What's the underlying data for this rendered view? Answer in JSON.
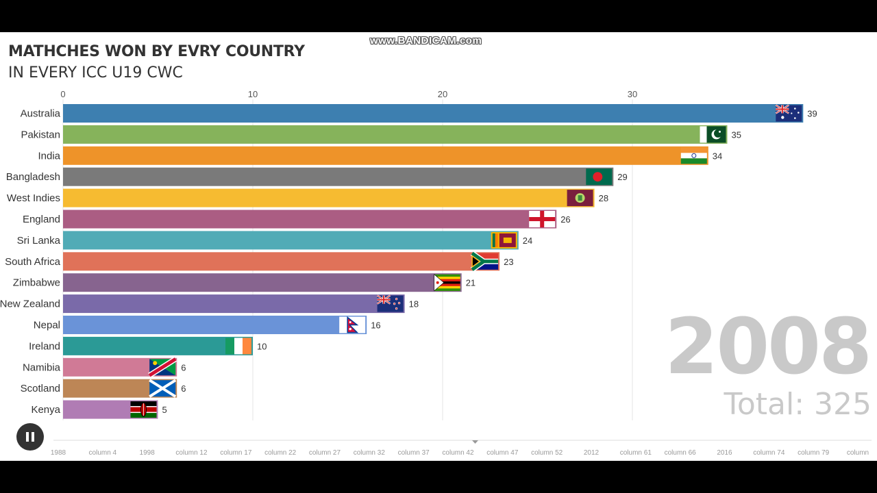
{
  "watermark": "www.BANDICAM.com",
  "chart_data": {
    "type": "bar",
    "orientation": "horizontal",
    "title": "MATHCHES WON BY EVRY COUNTRY",
    "subtitle": "IN EVERY ICC U19 CWC",
    "categories": [
      "Australia",
      "Pakistan",
      "India",
      "Bangladesh",
      "West Indies",
      "England",
      "Sri Lanka",
      "South Africa",
      "Zimbabwe",
      "New Zealand",
      "Nepal",
      "Ireland",
      "Namibia",
      "Scotland",
      "Kenya"
    ],
    "values": [
      39,
      35,
      34,
      29,
      28,
      26,
      24,
      23,
      21,
      18,
      16,
      10,
      6,
      6,
      5
    ],
    "colors": [
      "#3d7fb0",
      "#86b35b",
      "#ee9329",
      "#7a7a7a",
      "#f6bb31",
      "#ab5d83",
      "#51abb6",
      "#e07259",
      "#87648f",
      "#7a6aa9",
      "#6a93d8",
      "#2b9a96",
      "#d07a96",
      "#bd8656",
      "#b07cb4"
    ],
    "flags": [
      "australia-flag-icon",
      "pakistan-flag-icon",
      "india-flag-icon",
      "bangladesh-flag-icon",
      "west-indies-flag-icon",
      "england-flag-icon",
      "sri-lanka-flag-icon",
      "south-africa-flag-icon",
      "zimbabwe-flag-icon",
      "new-zealand-flag-icon",
      "nepal-flag-icon",
      "ireland-flag-icon",
      "namibia-flag-icon",
      "scotland-flag-icon",
      "kenya-flag-icon"
    ],
    "x_ticks": [
      0,
      10,
      20,
      30
    ],
    "xlim": [
      0,
      40
    ],
    "grid": true,
    "year": "2008",
    "total_label": "Total: 325"
  },
  "timeline": {
    "labels": [
      "1988",
      "column 4",
      "1998",
      "column 12",
      "column 17",
      "column 22",
      "column 27",
      "column 32",
      "column 37",
      "column 42",
      "column 47",
      "column 52",
      "2012",
      "column 61",
      "column 66",
      "2016",
      "column 74",
      "column 79",
      "column"
    ]
  }
}
